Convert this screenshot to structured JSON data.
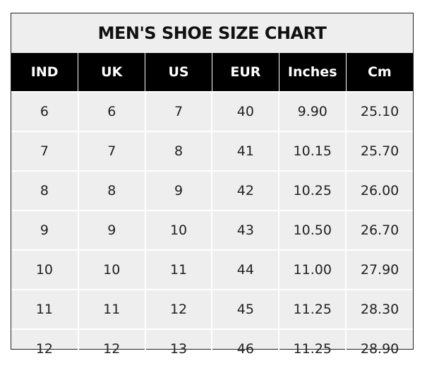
{
  "title": "MEN'S SHOE SIZE CHART",
  "headers": [
    "IND",
    "UK",
    "US",
    "EUR",
    "Inches",
    "Cm"
  ],
  "rows": [
    [
      "6",
      "6",
      "7",
      "40",
      "9.90",
      "25.10"
    ],
    [
      "7",
      "7",
      "8",
      "41",
      "10.15",
      "25.70"
    ],
    [
      "8",
      "8",
      "9",
      "42",
      "10.25",
      "26.00"
    ],
    [
      "9",
      "9",
      "10",
      "43",
      "10.50",
      "26.70"
    ],
    [
      "10",
      "10",
      "11",
      "44",
      "11.00",
      "27.90"
    ],
    [
      "11",
      "11",
      "12",
      "45",
      "11.25",
      "28.30"
    ],
    [
      "12",
      "12",
      "13",
      "46",
      "11.25",
      "28.90"
    ]
  ],
  "colors": {
    "header_bg": "#000000",
    "header_text": "#ffffff",
    "cell_bg": "#eeeeee",
    "grid": "#ffffff"
  }
}
